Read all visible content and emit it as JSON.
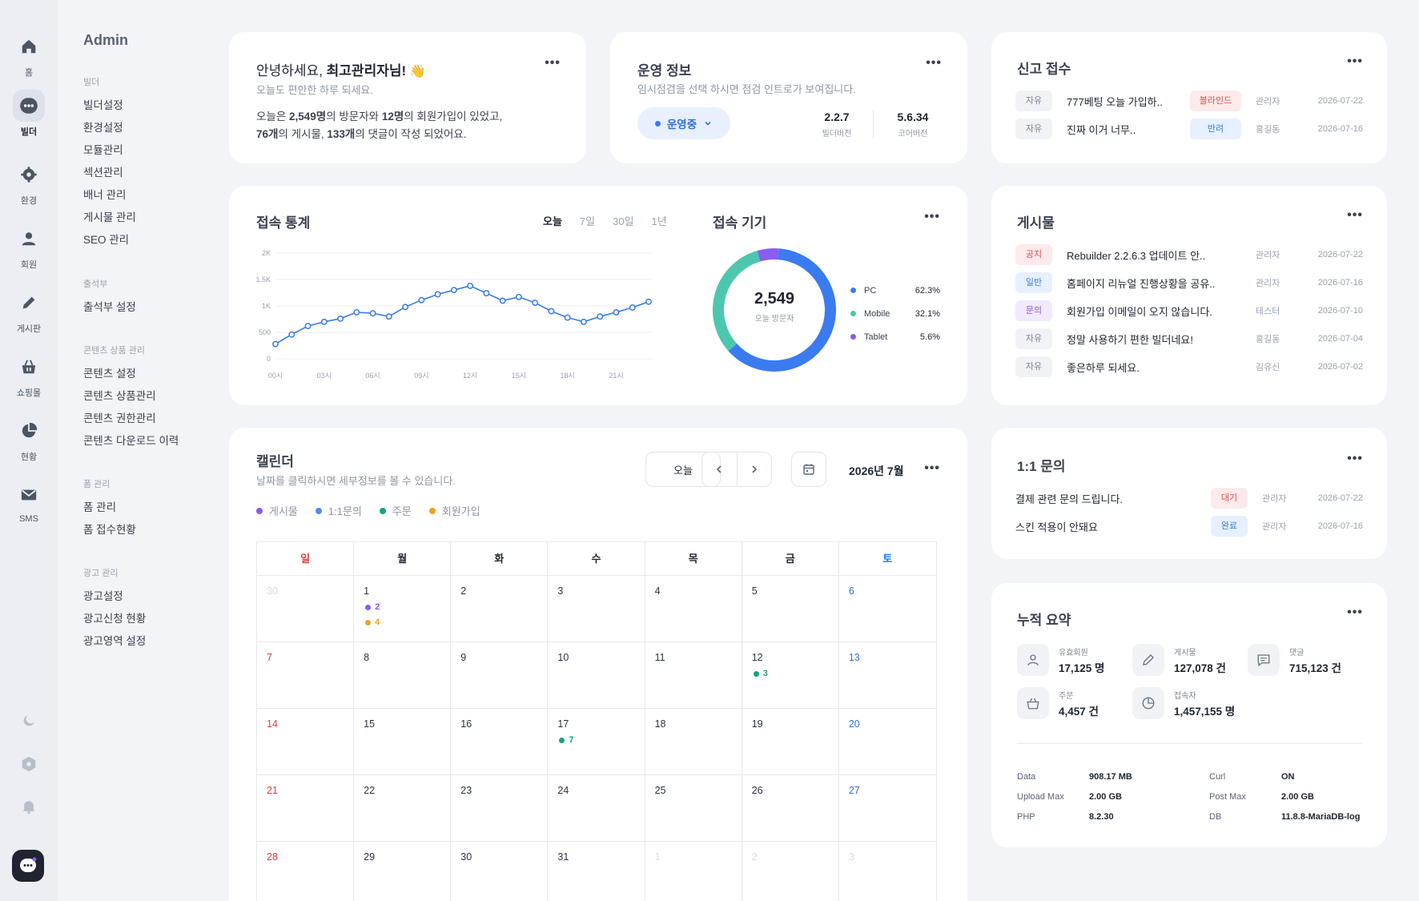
{
  "rail": [
    {
      "icon": "home-icon",
      "label": "홈"
    },
    {
      "icon": "bot-icon",
      "label": "빌더",
      "active": true
    },
    {
      "icon": "gear-icon",
      "label": "환경"
    },
    {
      "icon": "user-icon",
      "label": "회원"
    },
    {
      "icon": "pen-icon",
      "label": "게시판"
    },
    {
      "icon": "basket-icon",
      "label": "쇼핑몰"
    },
    {
      "icon": "pie-icon",
      "label": "현황"
    },
    {
      "icon": "mail-icon",
      "label": "SMS"
    }
  ],
  "sidebar": {
    "title": "Admin",
    "groups": [
      {
        "header": "빌더",
        "items": [
          "빌더설정",
          "환경설정",
          "모듈관리",
          "섹션관리",
          "배너 관리",
          "게시물 관리",
          "SEO 관리"
        ]
      },
      {
        "header": "출석부",
        "items": [
          "출석부 설정"
        ]
      },
      {
        "header": "콘텐츠 상품 관리",
        "items": [
          "콘텐츠 설정",
          "콘텐츠 상품관리",
          "콘텐츠 권한관리",
          "콘텐츠 다운로드 이력"
        ]
      },
      {
        "header": "폼 관리",
        "items": [
          "폼 관리",
          "폼 접수현황"
        ]
      },
      {
        "header": "광고 관리",
        "items": [
          "광고설정",
          "광고신청 현황",
          "광고영역 설정"
        ]
      }
    ]
  },
  "welcome": {
    "title_prefix": "안녕하세요, ",
    "title_name": "최고관리자님!",
    "emoji": "👋",
    "subtitle": "오늘도 편안한 하루 되세요.",
    "line1_a": "오늘은 ",
    "visitors": "2,549명",
    "line1_b": "의 방문자와 ",
    "signups": "12명",
    "line1_c": "의 회원가입이 있었고,",
    "posts": "76개",
    "line2_a": "의 게시물, ",
    "comments": "133개",
    "line2_b": "의 댓글이 작성 되었어요."
  },
  "ops": {
    "title": "운영 정보",
    "subtitle": "임시점검을 선택 하시면 점검 인트로가 보여집니다.",
    "status": "운영중",
    "builder_version": "2.2.7",
    "builder_label": "빌더버전",
    "core_version": "5.6.34",
    "core_label": "코어버전"
  },
  "reports": {
    "title": "신고 접수",
    "rows": [
      {
        "cat": "자유",
        "title": "777베팅 오늘 가입하..",
        "status": "블라인드",
        "status_color": "red",
        "author": "관리자",
        "date": "2026-07-22"
      },
      {
        "cat": "자유",
        "title": "진짜 이거 너무..",
        "status": "반려",
        "status_color": "blue",
        "author": "홍길동",
        "date": "2026-07-16"
      }
    ]
  },
  "traffic": {
    "title": "접속 통계",
    "tabs": [
      "오늘",
      "7일",
      "30일",
      "1년"
    ],
    "active_tab": "오늘"
  },
  "devices": {
    "title": "접속 기기",
    "total": "2,549",
    "total_label": "오늘 방문자",
    "items": [
      {
        "name": "PC",
        "pct": "62.3%",
        "value": 62.3,
        "color": "#3b7bf0"
      },
      {
        "name": "Mobile",
        "pct": "32.1%",
        "value": 32.1,
        "color": "#4cc7ae"
      },
      {
        "name": "Tablet",
        "pct": "5.6%",
        "value": 5.6,
        "color": "#8b5cf0"
      }
    ]
  },
  "chart_data": {
    "type": "line",
    "title": "접속 통계",
    "x_tick_labels": [
      "00시",
      "03시",
      "06시",
      "09시",
      "12시",
      "15시",
      "18시",
      "21시"
    ],
    "y_tick_labels": [
      "0",
      "500",
      "1K",
      "1.5K",
      "2K"
    ],
    "ylim": [
      0,
      2000
    ],
    "x": [
      0,
      1,
      2,
      3,
      4,
      5,
      6,
      7,
      8,
      9,
      10,
      11,
      12,
      13,
      14,
      15,
      16,
      17,
      18,
      19,
      20,
      21,
      22,
      23
    ],
    "series": [
      {
        "values": [
          280,
          460,
          620,
          700,
          760,
          880,
          860,
          800,
          980,
          1110,
          1220,
          1300,
          1380,
          1240,
          1100,
          1170,
          1060,
          900,
          780,
          700,
          800,
          880,
          970,
          1080
        ],
        "color": "#3b7be8"
      }
    ],
    "grid": true
  },
  "posts": {
    "title": "게시물",
    "rows": [
      {
        "cat": "공지",
        "cat_color": "red",
        "title": "Rebuilder 2.2.6.3 업데이트 안..",
        "author": "관리자",
        "date": "2026-07-22"
      },
      {
        "cat": "일반",
        "cat_color": "blue",
        "title": "홈페이지 리뉴얼 진행상황을 공유..",
        "author": "관리자",
        "date": "2026-07-16"
      },
      {
        "cat": "문의",
        "cat_color": "purple",
        "title": "회원가입 이메일이 오지 않습니다.",
        "author": "테스터",
        "date": "2026-07-10"
      },
      {
        "cat": "자유",
        "cat_color": "gray",
        "title": "정말 사용하기 편한 빌더네요!",
        "author": "홍길동",
        "date": "2026-07-04"
      },
      {
        "cat": "자유",
        "cat_color": "gray",
        "title": "좋은하루 되세요.",
        "author": "김유신",
        "date": "2026-07-02"
      }
    ]
  },
  "calendar": {
    "title": "캘린더",
    "subtitle": "날짜를 클릭하시면 세부정보를 볼 수 있습니다.",
    "today_label": "오늘",
    "month_label": "2026년 7월",
    "legend": [
      {
        "name": "게시물",
        "color": "#8b5cf0"
      },
      {
        "name": "1:1문의",
        "color": "#4a8ef0"
      },
      {
        "name": "주문",
        "color": "#14a37f"
      },
      {
        "name": "회원가입",
        "color": "#f0a020"
      }
    ],
    "weekdays": [
      "일",
      "월",
      "화",
      "수",
      "목",
      "금",
      "토"
    ],
    "weeks": [
      [
        {
          "d": "30",
          "out": true
        },
        {
          "d": "1",
          "ev": [
            {
              "n": "2",
              "c": "#8b5cf0"
            },
            {
              "n": "4",
              "c": "#f0a020"
            }
          ]
        },
        {
          "d": "2"
        },
        {
          "d": "3"
        },
        {
          "d": "4"
        },
        {
          "d": "5"
        },
        {
          "d": "6"
        }
      ],
      [
        {
          "d": "7"
        },
        {
          "d": "8"
        },
        {
          "d": "9"
        },
        {
          "d": "10"
        },
        {
          "d": "11"
        },
        {
          "d": "12",
          "ev": [
            {
              "n": "3",
              "c": "#14a37f"
            }
          ]
        },
        {
          "d": "13"
        }
      ],
      [
        {
          "d": "14"
        },
        {
          "d": "15"
        },
        {
          "d": "16"
        },
        {
          "d": "17",
          "ev": [
            {
              "n": "7",
              "c": "#14a37f"
            }
          ]
        },
        {
          "d": "18"
        },
        {
          "d": "19"
        },
        {
          "d": "20"
        }
      ],
      [
        {
          "d": "21"
        },
        {
          "d": "22"
        },
        {
          "d": "23"
        },
        {
          "d": "24"
        },
        {
          "d": "25"
        },
        {
          "d": "26"
        },
        {
          "d": "27"
        }
      ],
      [
        {
          "d": "28"
        },
        {
          "d": "29"
        },
        {
          "d": "30"
        },
        {
          "d": "31"
        },
        {
          "d": "1",
          "out": true
        },
        {
          "d": "2",
          "out": true
        },
        {
          "d": "3",
          "out": true
        }
      ]
    ]
  },
  "inquiry": {
    "title": "1:1 문의",
    "rows": [
      {
        "title": "결제 관련 문의 드립니다.",
        "status": "대기",
        "status_color": "red",
        "author": "관리자",
        "date": "2026-07-22"
      },
      {
        "title": "스킨 적용이 안돼요",
        "status": "완료",
        "status_color": "blue",
        "author": "관리자",
        "date": "2026-07-16"
      }
    ]
  },
  "summary": {
    "title": "누적 요약",
    "stats": [
      {
        "icon": "user-icon",
        "label": "유효회원",
        "value": "17,125 명"
      },
      {
        "icon": "pen-icon",
        "label": "게시물",
        "value": "127,078 건"
      },
      {
        "icon": "comment-icon",
        "label": "댓글",
        "value": "715,123 건"
      },
      {
        "icon": "basket-icon",
        "label": "주문",
        "value": "4,457 건"
      },
      {
        "icon": "clock-icon",
        "label": "접속자",
        "value": "1,457,155 명"
      }
    ],
    "system": [
      {
        "k": "Data",
        "v": "908.17 MB"
      },
      {
        "k": "Curl",
        "v": "ON"
      },
      {
        "k": "Upload Max",
        "v": "2.00 GB"
      },
      {
        "k": "Post Max",
        "v": "2.00 GB"
      },
      {
        "k": "PHP",
        "v": "8.2.30"
      },
      {
        "k": "DB",
        "v": "11.8.8-MariaDB-log"
      }
    ]
  }
}
